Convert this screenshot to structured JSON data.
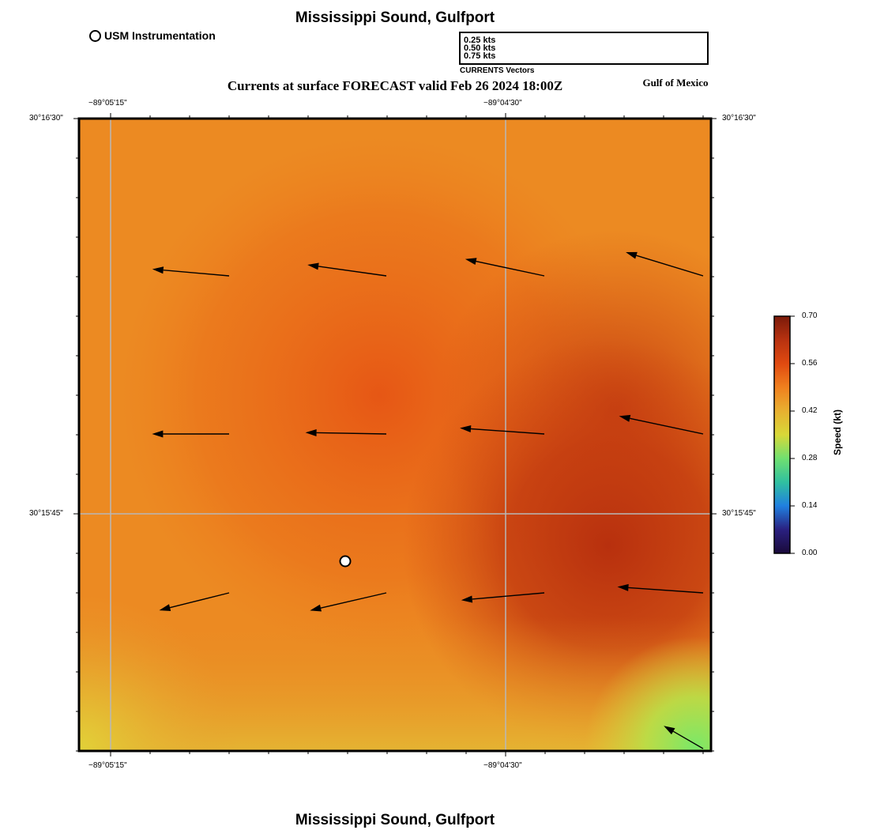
{
  "title": "Mississippi Sound, Gulfport",
  "bottom_title": "Mississippi Sound, Gulfport",
  "subtitle": "Currents at surface FORECAST valid Feb 26 2024 18:00Z",
  "region_label": "Gulf of Mexico",
  "station_legend": {
    "label": "USM Instrumentation",
    "symbol": "open-circle-icon"
  },
  "vector_legend": {
    "caption": "CURRENTS Vectors",
    "entries": [
      {
        "label": "0.25 kts",
        "speed_kt": 0.25
      },
      {
        "label": "0.50 kts",
        "speed_kt": 0.5
      },
      {
        "label": "0.75 kts",
        "speed_kt": 0.75
      }
    ]
  },
  "axes": {
    "lon_ticks": [
      "−89°05'15\"",
      "−89°04'30\""
    ],
    "lat_ticks": [
      "30°16'30\"",
      "30°15'45\""
    ]
  },
  "colorbar": {
    "title": "Speed (kt)",
    "min": 0.0,
    "max": 0.7,
    "ticks": [
      "0.70",
      "0.56",
      "0.42",
      "0.28",
      "0.14",
      "0.00"
    ],
    "colors": [
      "#7a1a0a",
      "#b83210",
      "#e04a10",
      "#f0801e",
      "#e8b030",
      "#d8d838",
      "#70e070",
      "#30c0a0",
      "#2080e0",
      "#2a2080",
      "#1a0a3a"
    ]
  },
  "current_vectors": [
    {
      "row": 1,
      "col": 1,
      "speed_kt": 0.61,
      "direction_deg": 275
    },
    {
      "row": 1,
      "col": 2,
      "speed_kt": 0.63,
      "direction_deg": 278
    },
    {
      "row": 1,
      "col": 3,
      "speed_kt": 0.64,
      "direction_deg": 282
    },
    {
      "row": 1,
      "col": 4,
      "speed_kt": 0.64,
      "direction_deg": 287
    },
    {
      "row": 2,
      "col": 1,
      "speed_kt": 0.61,
      "direction_deg": 270
    },
    {
      "row": 2,
      "col": 2,
      "speed_kt": 0.64,
      "direction_deg": 271
    },
    {
      "row": 2,
      "col": 3,
      "speed_kt": 0.67,
      "direction_deg": 274
    },
    {
      "row": 2,
      "col": 4,
      "speed_kt": 0.68,
      "direction_deg": 282
    },
    {
      "row": 3,
      "col": 1,
      "speed_kt": 0.57,
      "direction_deg": 256
    },
    {
      "row": 3,
      "col": 2,
      "speed_kt": 0.62,
      "direction_deg": 257
    },
    {
      "row": 3,
      "col": 3,
      "speed_kt": 0.66,
      "direction_deg": 265
    },
    {
      "row": 3,
      "col": 4,
      "speed_kt": 0.68,
      "direction_deg": 274
    },
    {
      "row": 4,
      "col": 4,
      "speed_kt": 0.36,
      "direction_deg": 300
    }
  ]
}
